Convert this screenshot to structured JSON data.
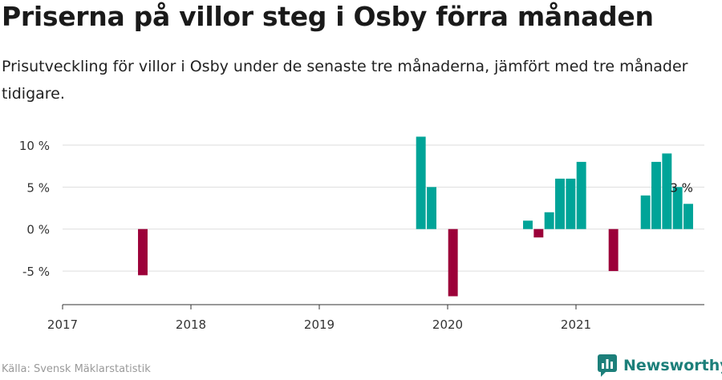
{
  "title": "Priserna på villor steg i Osby förra månaden",
  "subtitle": "Prisutveckling för villor i Osby under de senaste tre månaderna, jämfört med tre månader tidigare.",
  "source": "Källa: Svensk Mäklarstatistik",
  "brand": {
    "name": "Newsworthy",
    "icon": "newsworthy-logo-icon"
  },
  "colors": {
    "positive": "#00a498",
    "negative": "#9c0039",
    "grid": "#dddddd",
    "axis": "#333333"
  },
  "chart_data": {
    "type": "bar",
    "title": "",
    "xlabel": "",
    "ylabel": "",
    "x_range": [
      "2017-01",
      "2021-12"
    ],
    "ylim": [
      -9,
      12
    ],
    "grid": true,
    "legend": "none",
    "y_ticks": [
      {
        "value": 10,
        "label": "10 %"
      },
      {
        "value": 5,
        "label": "5 %"
      },
      {
        "value": 0,
        "label": "0 %"
      },
      {
        "value": -5,
        "label": "-5 %"
      }
    ],
    "x_ticks": [
      {
        "value": "2017-01",
        "label": "2017"
      },
      {
        "value": "2018-01",
        "label": "2018"
      },
      {
        "value": "2019-01",
        "label": "2019"
      },
      {
        "value": "2020-01",
        "label": "2020"
      },
      {
        "value": "2021-01",
        "label": "2021"
      }
    ],
    "series": [
      {
        "x": [
          "2017-08",
          "2019-10",
          "2019-11",
          "2020-01",
          "2020-08",
          "2020-09",
          "2020-10",
          "2020-11",
          "2020-12",
          "2021-01",
          "2021-04",
          "2021-07",
          "2021-08",
          "2021-09",
          "2021-10",
          "2021-11"
        ],
        "values": [
          -5.5,
          11,
          5,
          -8,
          1,
          -1,
          2,
          6,
          6,
          8,
          -5,
          4,
          8,
          9,
          5,
          3
        ]
      }
    ],
    "annotations": [
      {
        "x": "2021-11",
        "label": "3 %"
      }
    ]
  }
}
